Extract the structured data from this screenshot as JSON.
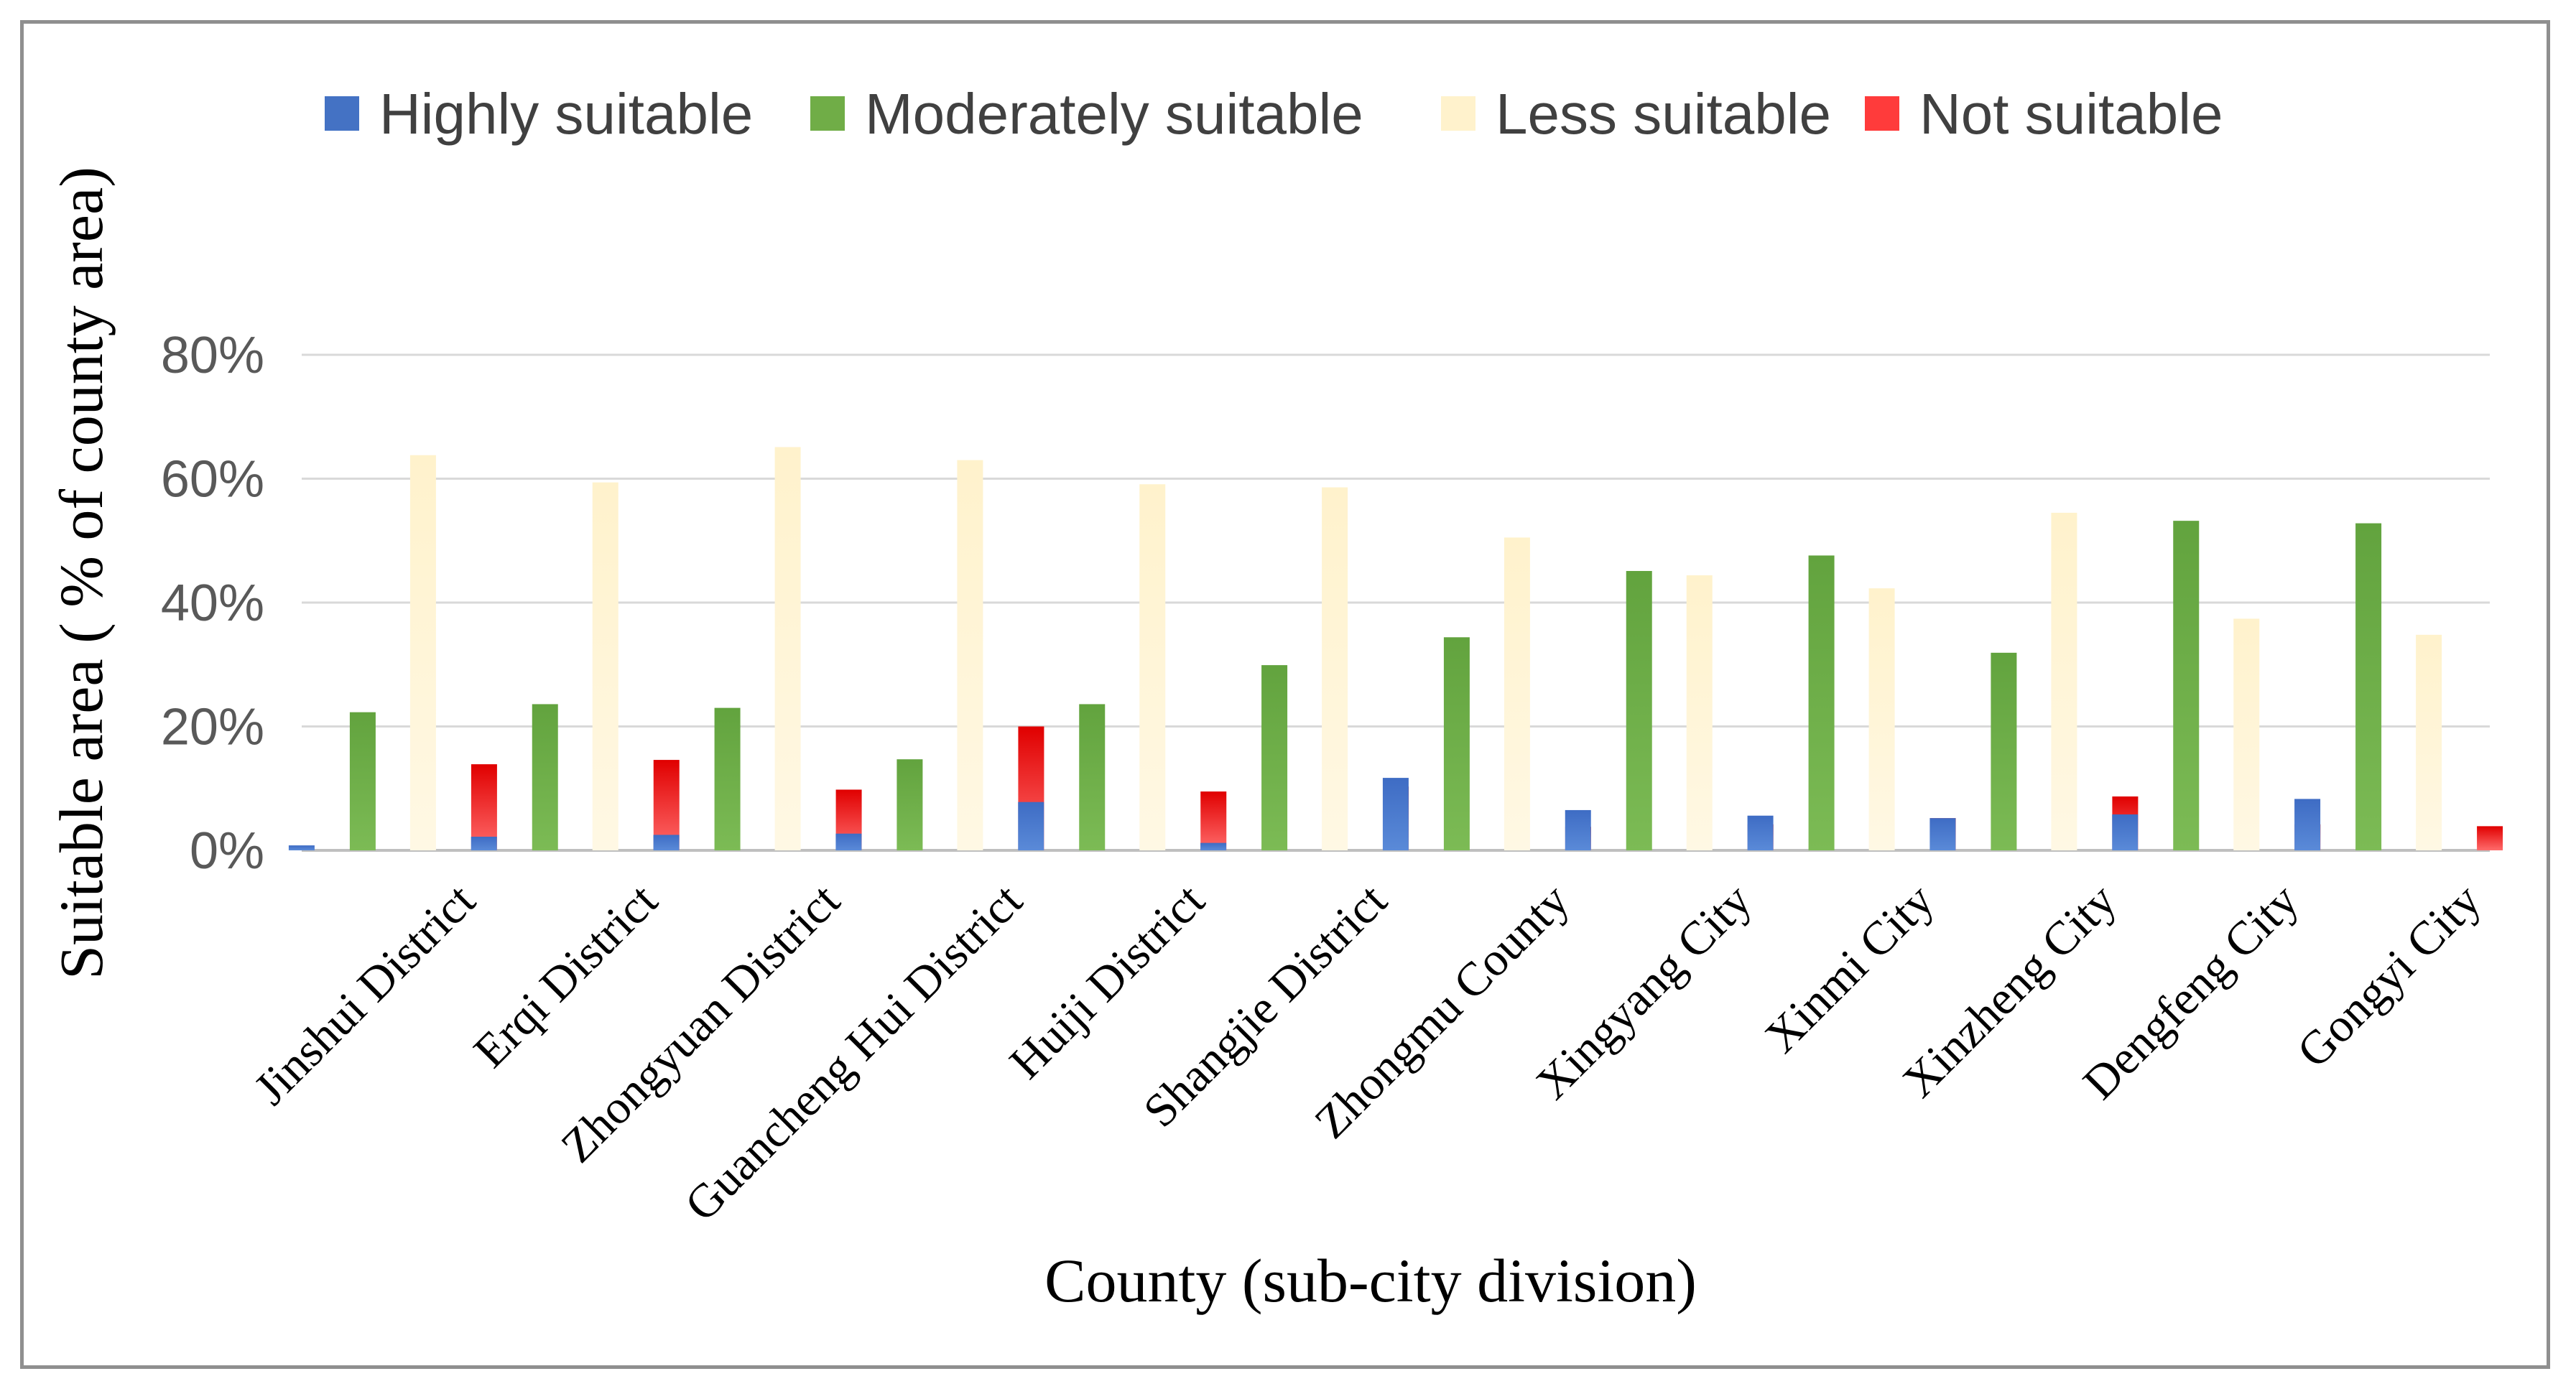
{
  "chart_data": {
    "type": "bar",
    "title": "",
    "xlabel": "County (sub-city division)",
    "ylabel": "Suitable area ( % of county area)",
    "ylim": [
      0,
      80
    ],
    "yticks": [
      "0%",
      "20%",
      "40%",
      "60%",
      "80%"
    ],
    "ytick_values": [
      0,
      20,
      40,
      60,
      80
    ],
    "grid": true,
    "legend_position": "top",
    "categories": [
      "Jinshui District",
      "Erqi District",
      "Zhongyuan District",
      "Guancheng Hui District",
      "Huiji District",
      "Shangjie District",
      "Zhongmu County",
      "Xingyang City",
      "Xinmi City",
      "Xinzheng City",
      "Dengfeng City",
      "Gongyi City"
    ],
    "series": [
      {
        "name": "Highly suitable",
        "color": "#4472C4",
        "values": [
          0.8,
          2.2,
          2.5,
          2.7,
          7.8,
          1.2,
          11.7,
          6.5,
          5.6,
          5.2,
          5.8,
          8.3
        ]
      },
      {
        "name": "Moderately suitable",
        "color": "#70AD47",
        "values": [
          22.3,
          23.6,
          23.0,
          14.7,
          23.6,
          29.9,
          34.4,
          45.1,
          47.6,
          31.9,
          53.2,
          52.8
        ]
      },
      {
        "name": "Less suitable",
        "color": "#FFF2CC",
        "values": [
          63.8,
          59.4,
          65.1,
          63.0,
          59.1,
          58.6,
          50.5,
          44.4,
          42.3,
          54.5,
          37.4,
          34.8
        ]
      },
      {
        "name": "Not suitable",
        "color": "#FF3B3B",
        "values": [
          13.9,
          14.6,
          9.8,
          20.0,
          9.5,
          10.3,
          3.8,
          4.2,
          5.2,
          8.7,
          4.2,
          3.9
        ]
      }
    ]
  }
}
